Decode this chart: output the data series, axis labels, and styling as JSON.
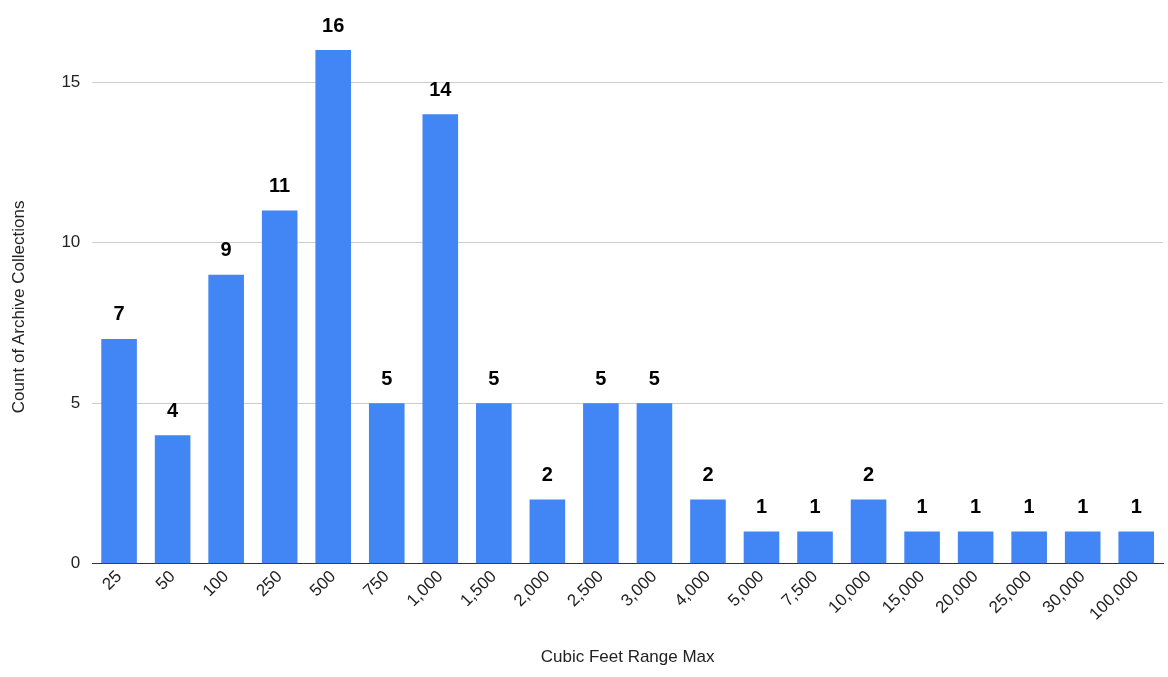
{
  "chart_data": {
    "type": "bar",
    "xlabel": "Cubic Feet Range Max",
    "ylabel": "Count of Archive Collections",
    "categories": [
      "25",
      "50",
      "100",
      "250",
      "500",
      "750",
      "1,000",
      "1,500",
      "2,000",
      "2,500",
      "3,000",
      "4,000",
      "5,000",
      "7,500",
      "10,000",
      "15,000",
      "20,000",
      "25,000",
      "30,000",
      "100,000"
    ],
    "values": [
      7,
      4,
      9,
      11,
      16,
      5,
      14,
      5,
      2,
      5,
      5,
      2,
      1,
      1,
      2,
      1,
      1,
      1,
      1,
      1
    ],
    "color": "#4285f4",
    "ylim": [
      0,
      16
    ],
    "yticks": [
      0,
      5,
      10,
      15
    ],
    "grid": "y",
    "data_labels": true,
    "legend": false
  }
}
